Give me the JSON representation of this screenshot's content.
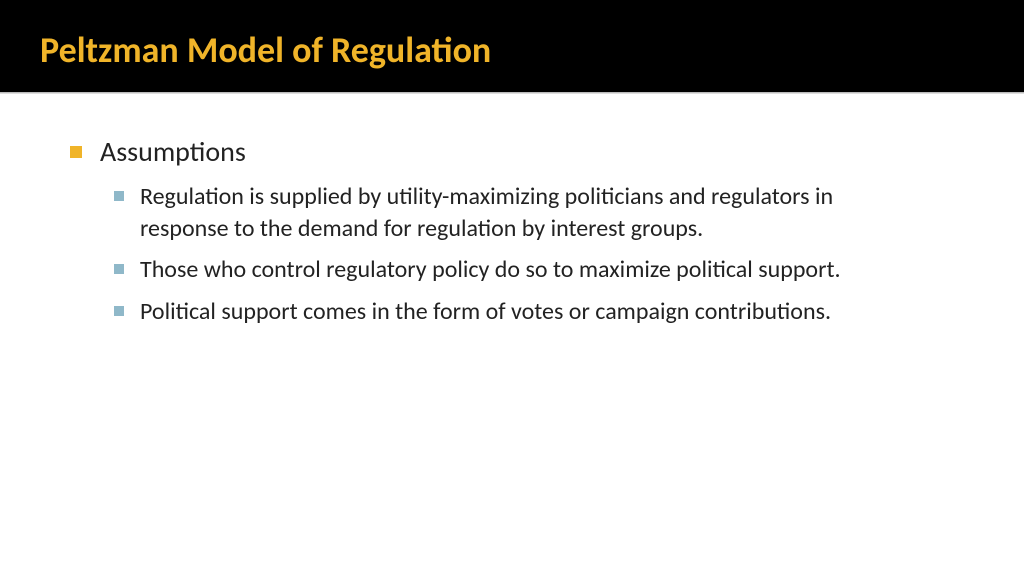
{
  "slide": {
    "title": "Peltzman Model of Regulation",
    "title_color": "#f0b429",
    "title_bg": "#000000",
    "title_fontsize": 36,
    "body_text_color": "#222222",
    "body_bg": "#ffffff",
    "bullet_l1_marker_color": "#f0b429",
    "bullet_l2_marker_color": "#8fb8c9",
    "l1_fontsize": 28,
    "l2_fontsize": 24,
    "bullets": {
      "l1": "Assumptions",
      "l2": [
        "Regulation is supplied by utility-maximizing politicians and regulators in response to the demand for regulation by interest groups.",
        "Those who control regulatory policy do so to maximize political support.",
        "Political support comes in the form of votes or campaign contributions."
      ]
    }
  }
}
